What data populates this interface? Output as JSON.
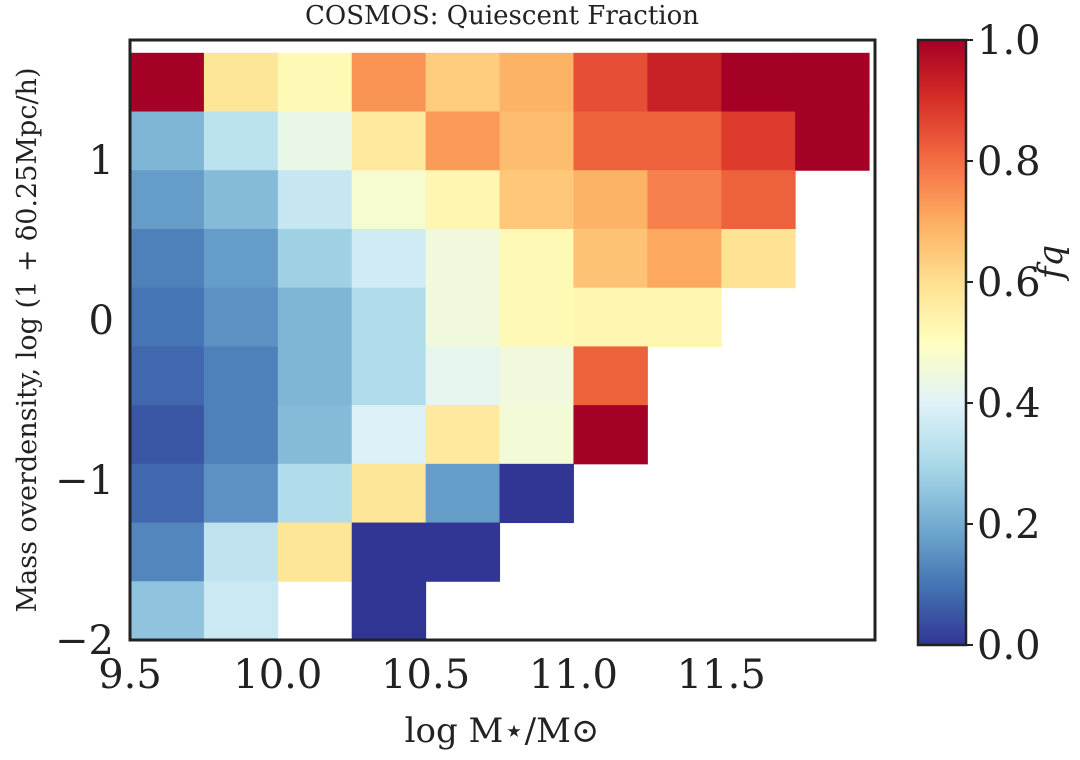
{
  "chart_data": {
    "type": "heatmap",
    "title": "COSMOS: Quiescent Fraction",
    "xlabel": "log M⋆/M⊙",
    "ylabel": "Mass overdensity, log (1 + δ0.25Mpc/h)",
    "colorbar_label": "fq",
    "colormap": "RdYlBu_r",
    "clim": [
      0.0,
      1.0
    ],
    "xlim": [
      9.5,
      12.02
    ],
    "ylim": [
      -2.0,
      1.75
    ],
    "x_ticks": [
      9.5,
      10.0,
      10.5,
      11.0,
      11.5
    ],
    "x_tick_labels": [
      "9.5",
      "10.0",
      "10.5",
      "11.0",
      "11.5"
    ],
    "y_ticks": [
      1,
      0,
      -1,
      -2
    ],
    "y_tick_labels": [
      "1",
      "0",
      "−1",
      "−2"
    ],
    "colorbar_ticks": [
      1.0,
      0.8,
      0.6,
      0.4,
      0.2,
      0.0
    ],
    "colorbar_tick_labels": [
      "1.0",
      "0.8",
      "0.6",
      "0.4",
      "0.2",
      "0.0"
    ],
    "x_edges": [
      9.5,
      9.75,
      10.0,
      10.25,
      10.5,
      10.75,
      11.0,
      11.25,
      11.5,
      11.75,
      12.0
    ],
    "y_edges_top_to_bottom": [
      1.67,
      1.303,
      0.936,
      0.569,
      0.202,
      -0.165,
      -0.532,
      -0.899,
      -1.266,
      -1.633,
      -2.0
    ],
    "values_top_to_bottom": [
      [
        1.0,
        0.58,
        0.52,
        0.74,
        0.64,
        0.69,
        0.85,
        0.93,
        1.0,
        1.0
      ],
      [
        0.22,
        0.33,
        0.43,
        0.57,
        0.73,
        0.67,
        0.82,
        0.82,
        0.88,
        1.0
      ],
      [
        0.17,
        0.23,
        0.35,
        0.47,
        0.53,
        0.65,
        0.69,
        0.77,
        0.82,
        null
      ],
      [
        0.12,
        0.17,
        0.28,
        0.37,
        0.45,
        0.52,
        0.66,
        0.71,
        0.59,
        null
      ],
      [
        0.1,
        0.15,
        0.22,
        0.31,
        0.45,
        0.52,
        0.53,
        0.53,
        null,
        null
      ],
      [
        0.08,
        0.12,
        0.22,
        0.31,
        0.42,
        0.45,
        0.82,
        null,
        null,
        null
      ],
      [
        0.05,
        0.12,
        0.23,
        0.39,
        0.57,
        0.46,
        1.0,
        null,
        null,
        null
      ],
      [
        0.08,
        0.15,
        0.31,
        0.58,
        0.17,
        0.0,
        null,
        null,
        null,
        null
      ],
      [
        0.13,
        0.34,
        0.58,
        0.0,
        0.0,
        null,
        null,
        null,
        null,
        null
      ],
      [
        0.25,
        0.36,
        null,
        0.0,
        null,
        null,
        null,
        null,
        null,
        null
      ]
    ]
  }
}
